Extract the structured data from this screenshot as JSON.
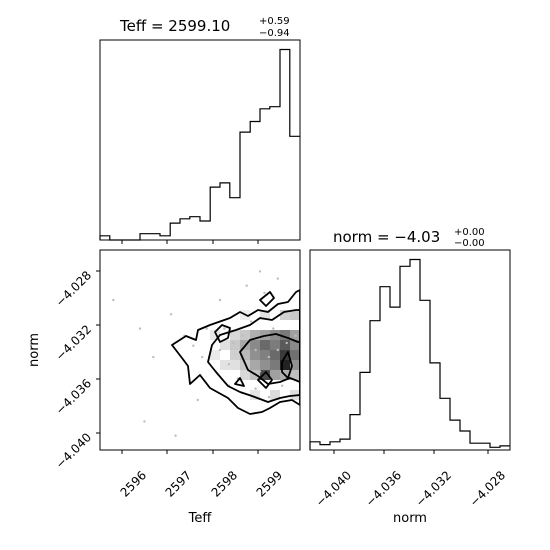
{
  "chart_data": [
    {
      "type": "histogram",
      "panel": "teff-marginal",
      "title": "Teff = 2599.10",
      "title_sup": "+0.59",
      "title_sub": "−0.94",
      "x_range": [
        2595.3,
        2599.8
      ],
      "bin_edges": [
        2595.3,
        2595.52,
        2595.75,
        2595.97,
        2596.2,
        2596.42,
        2596.65,
        2596.88,
        2597.1,
        2597.32,
        2597.55,
        2597.78,
        2598.0,
        2598.22,
        2598.45,
        2598.68,
        2598.9,
        2599.12,
        2599.35,
        2599.57,
        2599.8
      ],
      "counts": [
        2,
        0,
        0,
        0,
        3,
        3,
        2,
        8,
        10,
        11,
        9,
        25,
        27,
        20,
        51,
        56,
        62,
        63,
        90,
        49
      ]
    },
    {
      "type": "histogram",
      "panel": "norm-marginal",
      "title": "norm = −4.03",
      "title_sup": "+0.00",
      "title_sub": "−0.00",
      "xlabel": "norm",
      "x_range": [
        -4.0415,
        -4.0275
      ],
      "x_ticks": [
        "−4.040",
        "−4.036",
        "−4.032",
        "−4.028"
      ],
      "bin_edges": [
        -4.0415,
        -4.0408,
        -4.0401,
        -4.0394,
        -4.0387,
        -4.038,
        -4.0373,
        -4.0366,
        -4.0359,
        -4.0352,
        -4.0345,
        -4.0338,
        -4.0331,
        -4.0324,
        -4.0317,
        -4.031,
        -4.0303,
        -4.0296,
        -4.0289,
        -4.0282,
        -4.0275
      ],
      "counts": [
        6,
        4,
        6,
        8,
        26,
        57,
        95,
        120,
        105,
        135,
        140,
        110,
        64,
        38,
        22,
        14,
        5,
        5,
        2,
        3
      ]
    },
    {
      "type": "scatter",
      "panel": "joint-density",
      "xlabel": "Teff",
      "ylabel": "norm",
      "x_range": [
        2595.3,
        2599.8
      ],
      "y_range": [
        -4.0415,
        -4.0275
      ],
      "x_ticks": [
        "2596",
        "2597",
        "2598",
        "2599"
      ],
      "y_ticks": [
        "−4.028",
        "−4.032",
        "−4.036",
        "−4.040"
      ],
      "points": [
        [
          2597.2,
          -4.0335
        ],
        [
          2597.4,
          -4.0342
        ],
        [
          2597.6,
          -4.035
        ],
        [
          2597.7,
          -4.033
        ],
        [
          2597.9,
          -4.036
        ],
        [
          2598.0,
          -4.0345
        ],
        [
          2598.1,
          -4.033
        ],
        [
          2598.2,
          -4.0355
        ],
        [
          2598.3,
          -4.034
        ],
        [
          2598.4,
          -4.0365
        ],
        [
          2598.5,
          -4.0335
        ],
        [
          2598.6,
          -4.035
        ],
        [
          2598.7,
          -4.0325
        ],
        [
          2598.8,
          -4.0345
        ],
        [
          2598.9,
          -4.036
        ],
        [
          2599.0,
          -4.0335
        ],
        [
          2599.1,
          -4.035
        ],
        [
          2599.2,
          -4.033
        ],
        [
          2599.3,
          -4.0345
        ],
        [
          2599.4,
          -4.036
        ],
        [
          2599.5,
          -4.034
        ],
        [
          2599.6,
          -4.0355
        ],
        [
          2599.7,
          -4.0335
        ],
        [
          2598.2,
          -4.037
        ],
        [
          2598.5,
          -4.0375
        ],
        [
          2598.8,
          -4.0372
        ],
        [
          2599.1,
          -4.0378
        ],
        [
          2599.4,
          -4.037
        ],
        [
          2598.0,
          -4.031
        ],
        [
          2598.6,
          -4.03
        ],
        [
          2599.0,
          -4.0305
        ],
        [
          2599.3,
          -4.0295
        ],
        [
          2596.9,
          -4.032
        ],
        [
          2596.5,
          -4.035
        ],
        [
          2596.3,
          -4.0395
        ],
        [
          2597.0,
          -4.0405
        ],
        [
          2595.6,
          -4.031
        ],
        [
          2597.5,
          -4.038
        ],
        [
          2598.9,
          -4.029
        ],
        [
          2596.2,
          -4.033
        ]
      ]
    }
  ]
}
